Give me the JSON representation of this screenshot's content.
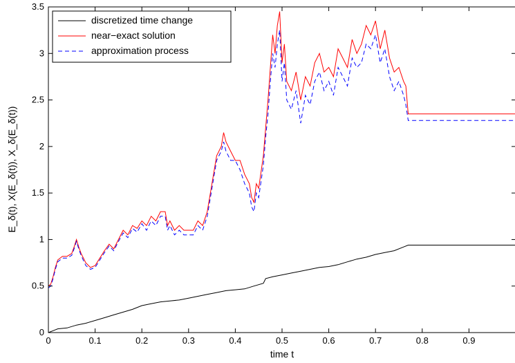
{
  "chart_data": {
    "type": "line",
    "xlabel": "time t",
    "ylabel": "E_δ(t), X(E_δ(t)), X_δ(E_δ(t))",
    "xlim": [
      0,
      1
    ],
    "ylim": [
      0,
      3.5
    ],
    "xticks": [
      "0",
      "0.1",
      "0.2",
      "0.3",
      "0.4",
      "0.5",
      "0.6",
      "0.7",
      "0.8",
      "0.9"
    ],
    "yticks": [
      "0",
      "0.5",
      "1",
      "1.5",
      "2",
      "2.5",
      "3",
      "3.5"
    ],
    "grid": false,
    "legend_position": "top-left",
    "colors": {
      "time_change": "#000000",
      "near_exact": "#ff0000",
      "approximation": "#0000ff"
    },
    "series": [
      {
        "name": "discretized time change",
        "style": "solid",
        "color": "#000000",
        "x": [
          0,
          0.01,
          0.02,
          0.04,
          0.06,
          0.08,
          0.1,
          0.12,
          0.14,
          0.16,
          0.18,
          0.2,
          0.22,
          0.24,
          0.26,
          0.28,
          0.3,
          0.32,
          0.34,
          0.36,
          0.38,
          0.4,
          0.42,
          0.44,
          0.46,
          0.465,
          0.48,
          0.5,
          0.52,
          0.54,
          0.56,
          0.58,
          0.6,
          0.62,
          0.64,
          0.66,
          0.68,
          0.7,
          0.72,
          0.74,
          0.76,
          0.77,
          1.0
        ],
        "y": [
          0,
          0.02,
          0.04,
          0.05,
          0.08,
          0.1,
          0.13,
          0.16,
          0.19,
          0.22,
          0.25,
          0.29,
          0.31,
          0.33,
          0.34,
          0.35,
          0.37,
          0.39,
          0.41,
          0.43,
          0.45,
          0.46,
          0.47,
          0.5,
          0.53,
          0.58,
          0.6,
          0.62,
          0.64,
          0.66,
          0.68,
          0.7,
          0.71,
          0.73,
          0.76,
          0.79,
          0.81,
          0.84,
          0.86,
          0.88,
          0.92,
          0.94,
          0.94
        ]
      },
      {
        "name": "near−exact solution",
        "style": "solid",
        "color": "#ff0000",
        "x": [
          0,
          0.005,
          0.01,
          0.015,
          0.02,
          0.03,
          0.04,
          0.05,
          0.055,
          0.06,
          0.065,
          0.07,
          0.08,
          0.09,
          0.1,
          0.11,
          0.12,
          0.13,
          0.14,
          0.15,
          0.16,
          0.17,
          0.18,
          0.19,
          0.2,
          0.21,
          0.22,
          0.23,
          0.24,
          0.25,
          0.255,
          0.26,
          0.27,
          0.28,
          0.29,
          0.3,
          0.31,
          0.32,
          0.33,
          0.34,
          0.35,
          0.355,
          0.36,
          0.37,
          0.375,
          0.38,
          0.39,
          0.4,
          0.41,
          0.42,
          0.43,
          0.435,
          0.44,
          0.445,
          0.45,
          0.46,
          0.465,
          0.47,
          0.475,
          0.48,
          0.485,
          0.49,
          0.495,
          0.5,
          0.505,
          0.51,
          0.52,
          0.53,
          0.54,
          0.55,
          0.56,
          0.57,
          0.58,
          0.59,
          0.6,
          0.61,
          0.62,
          0.63,
          0.64,
          0.65,
          0.66,
          0.67,
          0.68,
          0.69,
          0.7,
          0.71,
          0.72,
          0.73,
          0.74,
          0.75,
          0.76,
          0.765,
          0.77,
          1.0
        ],
        "y": [
          0.5,
          0.52,
          0.6,
          0.7,
          0.78,
          0.82,
          0.82,
          0.85,
          0.92,
          1.0,
          0.92,
          0.85,
          0.75,
          0.7,
          0.72,
          0.8,
          0.88,
          0.95,
          0.9,
          1.0,
          1.1,
          1.05,
          1.15,
          1.12,
          1.2,
          1.15,
          1.25,
          1.2,
          1.3,
          1.3,
          1.15,
          1.2,
          1.1,
          1.15,
          1.1,
          1.1,
          1.1,
          1.2,
          1.15,
          1.3,
          1.6,
          1.75,
          1.9,
          2.0,
          2.15,
          2.05,
          1.95,
          1.85,
          1.85,
          1.7,
          1.6,
          1.45,
          1.4,
          1.6,
          1.55,
          1.9,
          2.2,
          2.5,
          2.85,
          3.2,
          3.0,
          3.3,
          3.45,
          2.9,
          3.1,
          2.7,
          2.6,
          2.8,
          2.5,
          2.75,
          2.65,
          2.9,
          3.0,
          2.8,
          2.85,
          2.75,
          3.05,
          2.95,
          2.85,
          3.15,
          3.0,
          3.1,
          3.3,
          3.2,
          3.35,
          3.05,
          3.25,
          2.95,
          2.8,
          2.85,
          2.7,
          2.65,
          2.35,
          2.35
        ]
      },
      {
        "name": "approximation process",
        "style": "dashed",
        "color": "#0000ff",
        "x": [
          0,
          0.005,
          0.01,
          0.015,
          0.02,
          0.03,
          0.04,
          0.05,
          0.055,
          0.06,
          0.065,
          0.07,
          0.08,
          0.09,
          0.1,
          0.11,
          0.12,
          0.13,
          0.14,
          0.15,
          0.16,
          0.17,
          0.18,
          0.19,
          0.2,
          0.21,
          0.22,
          0.23,
          0.24,
          0.25,
          0.255,
          0.26,
          0.27,
          0.28,
          0.29,
          0.3,
          0.31,
          0.32,
          0.33,
          0.34,
          0.35,
          0.355,
          0.36,
          0.37,
          0.375,
          0.38,
          0.39,
          0.4,
          0.41,
          0.42,
          0.43,
          0.435,
          0.44,
          0.445,
          0.45,
          0.46,
          0.465,
          0.47,
          0.475,
          0.48,
          0.485,
          0.49,
          0.495,
          0.5,
          0.505,
          0.51,
          0.52,
          0.53,
          0.54,
          0.55,
          0.56,
          0.57,
          0.58,
          0.59,
          0.6,
          0.61,
          0.62,
          0.63,
          0.64,
          0.65,
          0.66,
          0.67,
          0.68,
          0.69,
          0.7,
          0.71,
          0.72,
          0.73,
          0.74,
          0.75,
          0.76,
          0.765,
          0.77,
          1.0
        ],
        "y": [
          0.48,
          0.5,
          0.58,
          0.68,
          0.76,
          0.8,
          0.8,
          0.83,
          0.9,
          0.98,
          0.9,
          0.83,
          0.72,
          0.68,
          0.7,
          0.78,
          0.86,
          0.93,
          0.88,
          0.98,
          1.07,
          1.02,
          1.12,
          1.08,
          1.17,
          1.1,
          1.2,
          1.15,
          1.25,
          1.25,
          1.1,
          1.15,
          1.05,
          1.1,
          1.05,
          1.05,
          1.05,
          1.15,
          1.1,
          1.25,
          1.55,
          1.7,
          1.85,
          1.95,
          2.05,
          1.95,
          1.85,
          1.85,
          1.75,
          1.6,
          1.5,
          1.35,
          1.3,
          1.5,
          1.45,
          1.8,
          2.1,
          2.35,
          2.7,
          3.0,
          2.85,
          3.1,
          3.25,
          2.7,
          2.9,
          2.5,
          2.4,
          2.6,
          2.25,
          2.55,
          2.45,
          2.7,
          2.8,
          2.6,
          2.7,
          2.55,
          2.85,
          2.75,
          2.65,
          2.95,
          2.85,
          2.9,
          3.1,
          3.05,
          3.2,
          2.9,
          3.05,
          2.75,
          2.6,
          2.7,
          2.55,
          2.45,
          2.28,
          2.28
        ]
      }
    ]
  }
}
